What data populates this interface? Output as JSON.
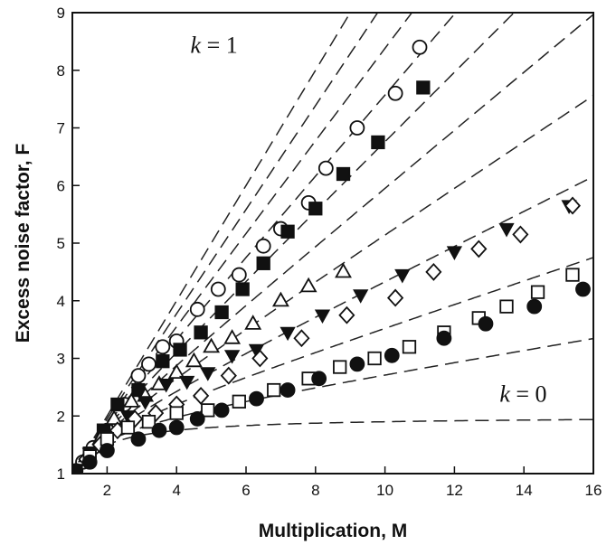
{
  "chart_data": {
    "type": "scatter",
    "title": "",
    "xlabel": "Multiplication, M",
    "ylabel": "Excess noise factor, F",
    "xlim": [
      1,
      16
    ],
    "ylim": [
      1,
      9
    ],
    "xticks": [
      2,
      4,
      6,
      8,
      10,
      12,
      14,
      16
    ],
    "yticks": [
      1,
      2,
      3,
      4,
      5,
      6,
      7,
      8,
      9
    ],
    "grid": false,
    "legend": "none",
    "curves": {
      "type": "dashed",
      "formula": "F = kM + (1-k)(2 - 1/M)",
      "k_values": [
        0,
        0.1,
        0.2,
        0.3,
        0.4,
        0.5,
        0.6,
        0.7,
        0.8,
        0.9,
        1.0
      ]
    },
    "annotations": [
      {
        "text_k": "k",
        "text_rest": " = 1",
        "x": 4.4,
        "y": 8.3
      },
      {
        "text_k": "k",
        "text_rest": " = 0",
        "x": 13.3,
        "y": 2.25
      }
    ],
    "series": [
      {
        "marker": "circle-open",
        "x": [
          1.0,
          1.3,
          1.6,
          2.0,
          2.5,
          2.9,
          3.2,
          3.6,
          4.0,
          4.6,
          5.2,
          5.8,
          6.5,
          7.0,
          7.8,
          8.3,
          9.2,
          10.3,
          11.0
        ],
        "y": [
          1.0,
          1.2,
          1.45,
          1.75,
          2.2,
          2.7,
          2.9,
          3.2,
          3.3,
          3.85,
          4.2,
          4.45,
          4.95,
          5.25,
          5.7,
          6.3,
          7.0,
          7.6,
          8.4
        ]
      },
      {
        "marker": "square-filled",
        "x": [
          1.1,
          1.5,
          1.9,
          2.3,
          2.9,
          3.6,
          4.1,
          4.7,
          5.3,
          5.9,
          6.5,
          7.2,
          8.0,
          8.8,
          9.8,
          11.1
        ],
        "y": [
          1.05,
          1.35,
          1.75,
          2.2,
          2.45,
          2.95,
          3.15,
          3.45,
          3.8,
          4.2,
          4.65,
          5.2,
          5.6,
          6.2,
          6.75,
          7.7
        ]
      },
      {
        "marker": "triangle-up-open",
        "x": [
          1.0,
          1.4,
          1.8,
          2.2,
          2.7,
          3.1,
          3.5,
          4.0,
          4.5,
          5.0,
          5.6,
          6.2,
          7.0,
          7.8,
          8.8
        ],
        "y": [
          1.0,
          1.3,
          1.6,
          1.95,
          2.25,
          2.35,
          2.55,
          2.75,
          2.95,
          3.2,
          3.35,
          3.6,
          4.0,
          4.25,
          4.5
        ]
      },
      {
        "marker": "triangle-down-filled",
        "x": [
          1.1,
          1.5,
          2.0,
          2.6,
          3.1,
          3.7,
          4.3,
          4.9,
          5.6,
          6.3,
          7.2,
          8.2,
          9.3,
          10.5,
          12.0,
          13.5,
          15.3
        ],
        "y": [
          1.05,
          1.35,
          1.65,
          2.0,
          2.25,
          2.55,
          2.6,
          2.75,
          3.05,
          3.15,
          3.45,
          3.75,
          4.1,
          4.45,
          4.85,
          5.25,
          5.65
        ]
      },
      {
        "marker": "diamond-open",
        "x": [
          1.0,
          1.4,
          1.8,
          2.3,
          2.8,
          3.4,
          4.0,
          4.7,
          5.5,
          6.4,
          7.6,
          8.9,
          10.3,
          11.4,
          12.7,
          13.9,
          15.4
        ],
        "y": [
          1.0,
          1.25,
          1.5,
          1.75,
          1.95,
          2.05,
          2.2,
          2.35,
          2.7,
          3.0,
          3.35,
          3.75,
          4.05,
          4.5,
          4.9,
          5.15,
          5.65
        ]
      },
      {
        "marker": "square-open",
        "x": [
          1.0,
          1.5,
          2.0,
          2.6,
          3.2,
          4.0,
          4.9,
          5.8,
          6.8,
          7.8,
          8.7,
          9.7,
          10.7,
          11.7,
          12.7,
          13.5,
          14.4,
          15.4
        ],
        "y": [
          1.0,
          1.3,
          1.6,
          1.8,
          1.9,
          2.05,
          2.1,
          2.25,
          2.45,
          2.65,
          2.85,
          3.0,
          3.2,
          3.45,
          3.7,
          3.9,
          4.15,
          4.45
        ]
      },
      {
        "marker": "circle-filled",
        "x": [
          1.1,
          1.5,
          2.0,
          2.9,
          3.5,
          4.0,
          4.6,
          5.3,
          6.3,
          7.2,
          8.1,
          9.2,
          10.2,
          11.7,
          12.9,
          14.3,
          15.7
        ],
        "y": [
          1.05,
          1.2,
          1.4,
          1.6,
          1.75,
          1.8,
          1.95,
          2.1,
          2.3,
          2.45,
          2.65,
          2.9,
          3.05,
          3.35,
          3.6,
          3.9,
          4.2
        ]
      }
    ]
  }
}
